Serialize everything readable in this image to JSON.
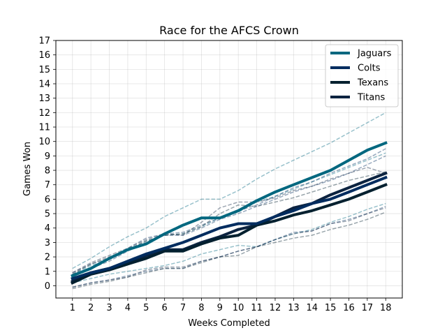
{
  "chart_data": {
    "type": "line",
    "title": "Race for the AFCS Crown",
    "xlabel": "Weeks Completed",
    "ylabel": "Games Won",
    "xlim": [
      0.1,
      18.9
    ],
    "ylim": [
      -0.85,
      17
    ],
    "x": [
      1,
      2,
      3,
      4,
      5,
      6,
      7,
      8,
      9,
      10,
      11,
      12,
      13,
      14,
      15,
      16,
      17,
      18
    ],
    "x_ticks": [
      "1",
      "2",
      "3",
      "4",
      "5",
      "6",
      "7",
      "8",
      "9",
      "10",
      "11",
      "12",
      "13",
      "14",
      "15",
      "16",
      "17",
      "18"
    ],
    "y_ticks": [
      "0",
      "1",
      "2",
      "3",
      "4",
      "5",
      "6",
      "7",
      "8",
      "9",
      "10",
      "11",
      "12",
      "13",
      "14",
      "15",
      "16",
      "17"
    ],
    "grid": true,
    "legend_position": "top-right",
    "series": [
      {
        "name": "Jaguars",
        "color": "#00677f",
        "values": [
          0.7,
          1.2,
          1.9,
          2.5,
          2.9,
          3.6,
          4.2,
          4.7,
          4.7,
          5.2,
          5.9,
          6.5,
          7.0,
          7.5,
          8.0,
          8.7,
          9.4,
          9.9
        ]
      },
      {
        "name": "Colts",
        "color": "#002c5f",
        "values": [
          0.5,
          0.9,
          1.2,
          1.7,
          2.2,
          2.6,
          3.0,
          3.5,
          4.0,
          4.3,
          4.3,
          4.8,
          5.2,
          5.7,
          6.0,
          6.5,
          7.0,
          7.5
        ]
      },
      {
        "name": "Texans",
        "color": "#03202f",
        "values": [
          0.2,
          0.8,
          1.1,
          1.5,
          1.9,
          2.4,
          2.4,
          2.9,
          3.3,
          3.5,
          4.2,
          4.5,
          4.9,
          5.2,
          5.6,
          6.0,
          6.5,
          7.0
        ]
      },
      {
        "name": "Titans",
        "color": "#0c2340",
        "values": [
          0.3,
          0.9,
          1.2,
          1.6,
          2.1,
          2.5,
          2.5,
          3.0,
          3.4,
          3.9,
          4.2,
          4.8,
          5.4,
          5.7,
          6.3,
          6.8,
          7.3,
          7.8
        ]
      }
    ],
    "projection_lines": [
      {
        "color": "#00677f",
        "values": [
          1.2,
          1.9,
          2.7,
          3.4,
          4.0,
          4.8,
          5.4,
          6.0,
          6.0,
          6.6,
          7.4,
          8.1,
          8.7,
          9.3,
          9.9,
          10.6,
          11.3,
          12.0
        ]
      },
      {
        "color": "#00677f",
        "values": [
          0.8,
          1.4,
          1.8,
          2.5,
          3.1,
          3.5,
          3.6,
          4.1,
          4.7,
          5.1,
          5.8,
          6.2,
          6.7,
          7.2,
          7.7,
          8.2,
          8.7,
          9.2
        ]
      },
      {
        "color": "#002c5f",
        "values": [
          0.9,
          1.5,
          1.9,
          2.6,
          3.3,
          3.6,
          3.7,
          4.2,
          4.7,
          5.2,
          5.6,
          6.2,
          6.8,
          7.2,
          7.8,
          8.3,
          8.8,
          9.5
        ]
      },
      {
        "color": "#002c5f",
        "values": [
          0.6,
          1.2,
          1.7,
          2.4,
          3.0,
          3.5,
          3.5,
          4.0,
          4.6,
          5.0,
          5.5,
          6.0,
          6.5,
          6.9,
          7.3,
          7.8,
          8.4,
          9.0
        ]
      },
      {
        "color": "#0c2340",
        "values": [
          0.9,
          1.6,
          2.1,
          2.6,
          3.2,
          3.6,
          3.5,
          4.4,
          5.4,
          5.8,
          5.8,
          6.1,
          6.6,
          6.9,
          7.4,
          7.8,
          8.2,
          7.8
        ]
      },
      {
        "color": "#03202f",
        "values": [
          0.8,
          1.5,
          2.0,
          2.5,
          3.1,
          3.5,
          3.6,
          4.1,
          5.0,
          5.6,
          5.5,
          5.8,
          6.1,
          6.5,
          6.9,
          7.3,
          7.6,
          7.9
        ]
      },
      {
        "color": "#00677f",
        "values": [
          0.2,
          0.5,
          0.8,
          1.0,
          1.2,
          1.4,
          1.7,
          2.2,
          2.5,
          2.8,
          2.7,
          3.2,
          3.6,
          3.9,
          4.4,
          4.8,
          5.3,
          5.7
        ]
      },
      {
        "color": "#002c5f",
        "values": [
          -0.1,
          0.2,
          0.4,
          0.7,
          1.0,
          1.2,
          1.2,
          1.7,
          2.0,
          2.4,
          2.7,
          3.2,
          3.7,
          3.8,
          4.3,
          4.6,
          5.0,
          5.5
        ]
      },
      {
        "color": "#03202f",
        "values": [
          -0.2,
          0.1,
          0.3,
          0.6,
          0.9,
          1.2,
          1.2,
          1.6,
          2.0,
          2.1,
          2.7,
          3.0,
          3.3,
          3.5,
          3.9,
          4.2,
          4.6,
          5.1
        ]
      },
      {
        "color": "#0c2340",
        "values": [
          -0.1,
          0.2,
          0.4,
          0.6,
          1.1,
          1.3,
          1.3,
          1.7,
          2.0,
          2.4,
          2.7,
          3.2,
          3.6,
          3.8,
          4.3,
          4.5,
          5.0,
          5.4
        ]
      }
    ]
  }
}
